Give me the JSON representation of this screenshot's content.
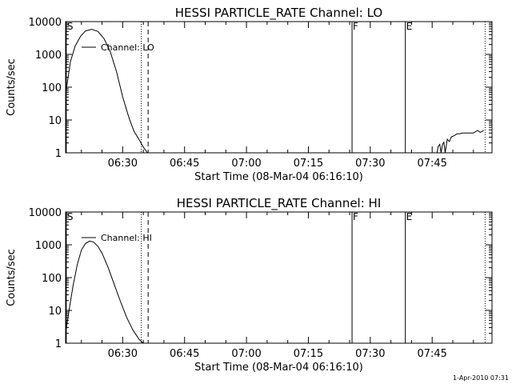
{
  "footer": {
    "timestamp": "1-Apr-2010 07:31"
  },
  "chart_data": [
    {
      "type": "line",
      "title": "HESSI PARTICLE_RATE Channel: LO",
      "xlabel": "Start Time (08-Mar-04 06:16:10)",
      "ylabel": "Counts/sec",
      "yscale": "log",
      "ylim": [
        1,
        10000
      ],
      "xlim": [
        "06:16:10",
        "07:59:30"
      ],
      "x_ticks": [
        "06:30",
        "06:45",
        "07:00",
        "07:15",
        "07:30",
        "07:45"
      ],
      "y_ticks": [
        "1",
        "10",
        "100",
        "1000",
        "10000"
      ],
      "legend": {
        "label": "Channel: LO",
        "position": "top-left"
      },
      "markers": [
        {
          "label": "S",
          "time": "06:16:20",
          "style": "solid"
        },
        {
          "label": "",
          "time": "06:34:30",
          "style": "dotted"
        },
        {
          "label": "",
          "time": "06:36:10",
          "style": "dashed"
        },
        {
          "label": "F",
          "time": "07:25:35",
          "style": "solid"
        },
        {
          "label": "E",
          "time": "07:38:30",
          "style": "solid"
        },
        {
          "label": "",
          "time": "07:57:50",
          "style": "dotted"
        }
      ],
      "series": [
        {
          "name": "Channel: LO",
          "segments": [
            {
              "x": [
                "06:16:10",
                "06:17:20",
                "06:18:30",
                "06:19:45",
                "06:21:00",
                "06:22:30",
                "06:24:00",
                "06:25:30",
                "06:27:00",
                "06:28:30",
                "06:30:00",
                "06:31:30",
                "06:32:45",
                "06:34:00",
                "06:35:00",
                "06:36:00"
              ],
              "y": [
                60,
                600,
                1800,
                3500,
                5200,
                5800,
                5000,
                3000,
                1200,
                300,
                50,
                12,
                4.5,
                2.5,
                1.5,
                1
              ]
            },
            {
              "x": [
                "07:46:10",
                "07:46:30",
                "07:46:50",
                "07:47:10",
                "07:47:30",
                "07:47:50",
                "07:48:10",
                "07:48:40",
                "07:49:10",
                "07:49:40",
                "07:50:20",
                "07:51:00",
                "07:51:40",
                "07:52:20",
                "07:53:00",
                "07:54:00",
                "07:55:00",
                "07:56:00",
                "07:56:40",
                "07:57:30"
              ],
              "y": [
                1,
                1.6,
                1.8,
                1,
                1.8,
                2.1,
                1,
                2.6,
                2.2,
                3.1,
                3.3,
                3.8,
                3.8,
                4.0,
                4.0,
                4.0,
                4.0,
                4.8,
                4.2,
                4.8
              ]
            }
          ]
        }
      ]
    },
    {
      "type": "line",
      "title": "HESSI PARTICLE_RATE Channel: HI",
      "xlabel": "Start Time (08-Mar-04 06:16:10)",
      "ylabel": "Counts/sec",
      "yscale": "log",
      "ylim": [
        1,
        10000
      ],
      "xlim": [
        "06:16:10",
        "07:59:30"
      ],
      "x_ticks": [
        "06:30",
        "06:45",
        "07:00",
        "07:15",
        "07:30",
        "07:45"
      ],
      "y_ticks": [
        "1",
        "10",
        "100",
        "1000",
        "10000"
      ],
      "legend": {
        "label": "Channel: HI",
        "position": "top-left"
      },
      "markers": [
        {
          "label": "S",
          "time": "06:16:20",
          "style": "solid"
        },
        {
          "label": "",
          "time": "06:34:30",
          "style": "dotted"
        },
        {
          "label": "",
          "time": "06:36:10",
          "style": "dashed"
        },
        {
          "label": "F",
          "time": "07:25:35",
          "style": "solid"
        },
        {
          "label": "E",
          "time": "07:38:30",
          "style": "solid"
        },
        {
          "label": "",
          "time": "07:57:50",
          "style": "dotted"
        }
      ],
      "series": [
        {
          "name": "Channel: HI",
          "segments": [
            {
              "x": [
                "06:16:10",
                "06:17:00",
                "06:18:00",
                "06:19:00",
                "06:20:00",
                "06:21:00",
                "06:22:00",
                "06:23:00",
                "06:24:00",
                "06:25:00",
                "06:26:30",
                "06:28:00",
                "06:29:30",
                "06:31:00",
                "06:32:30",
                "06:34:00",
                "06:35:00"
              ],
              "y": [
                2,
                10,
                60,
                250,
                700,
                1100,
                1300,
                1200,
                900,
                550,
                200,
                60,
                18,
                6,
                2.5,
                1.3,
                1
              ]
            }
          ]
        }
      ]
    }
  ]
}
